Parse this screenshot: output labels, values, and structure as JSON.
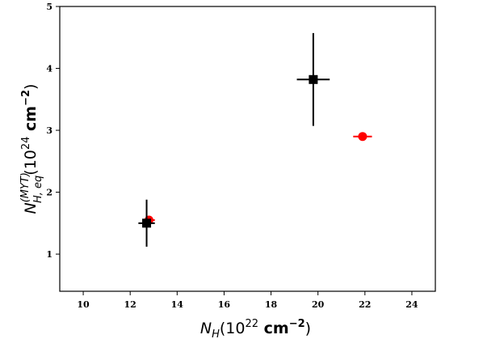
{
  "chart_data": {
    "type": "scatter",
    "title": "",
    "xlabel": "N_H(10^22 cm^-2)",
    "ylabel": "N_H,eq^(MYT)(10^24 cm^-2)",
    "xlim": [
      9,
      25
    ],
    "ylim": [
      0.4,
      5
    ],
    "xticks": [
      10,
      12,
      14,
      16,
      18,
      20,
      22,
      24
    ],
    "yticks": [
      1,
      2,
      3,
      4,
      5
    ],
    "grid": false,
    "series": [
      {
        "marker": "circle",
        "color": "#ff0000",
        "points": [
          {
            "x": 12.8,
            "y": 1.55,
            "xerr": 0.25,
            "yerr": 0.03
          },
          {
            "x": 21.9,
            "y": 2.9,
            "xerr": 0.4,
            "yerr": 0.05
          }
        ]
      },
      {
        "marker": "square",
        "color": "#000000",
        "points": [
          {
            "x": 12.7,
            "y": 1.5,
            "xerr": 0.35,
            "yerr": 0.38
          },
          {
            "x": 19.8,
            "y": 3.82,
            "xerr": 0.7,
            "yerr": 0.75
          }
        ]
      }
    ]
  }
}
